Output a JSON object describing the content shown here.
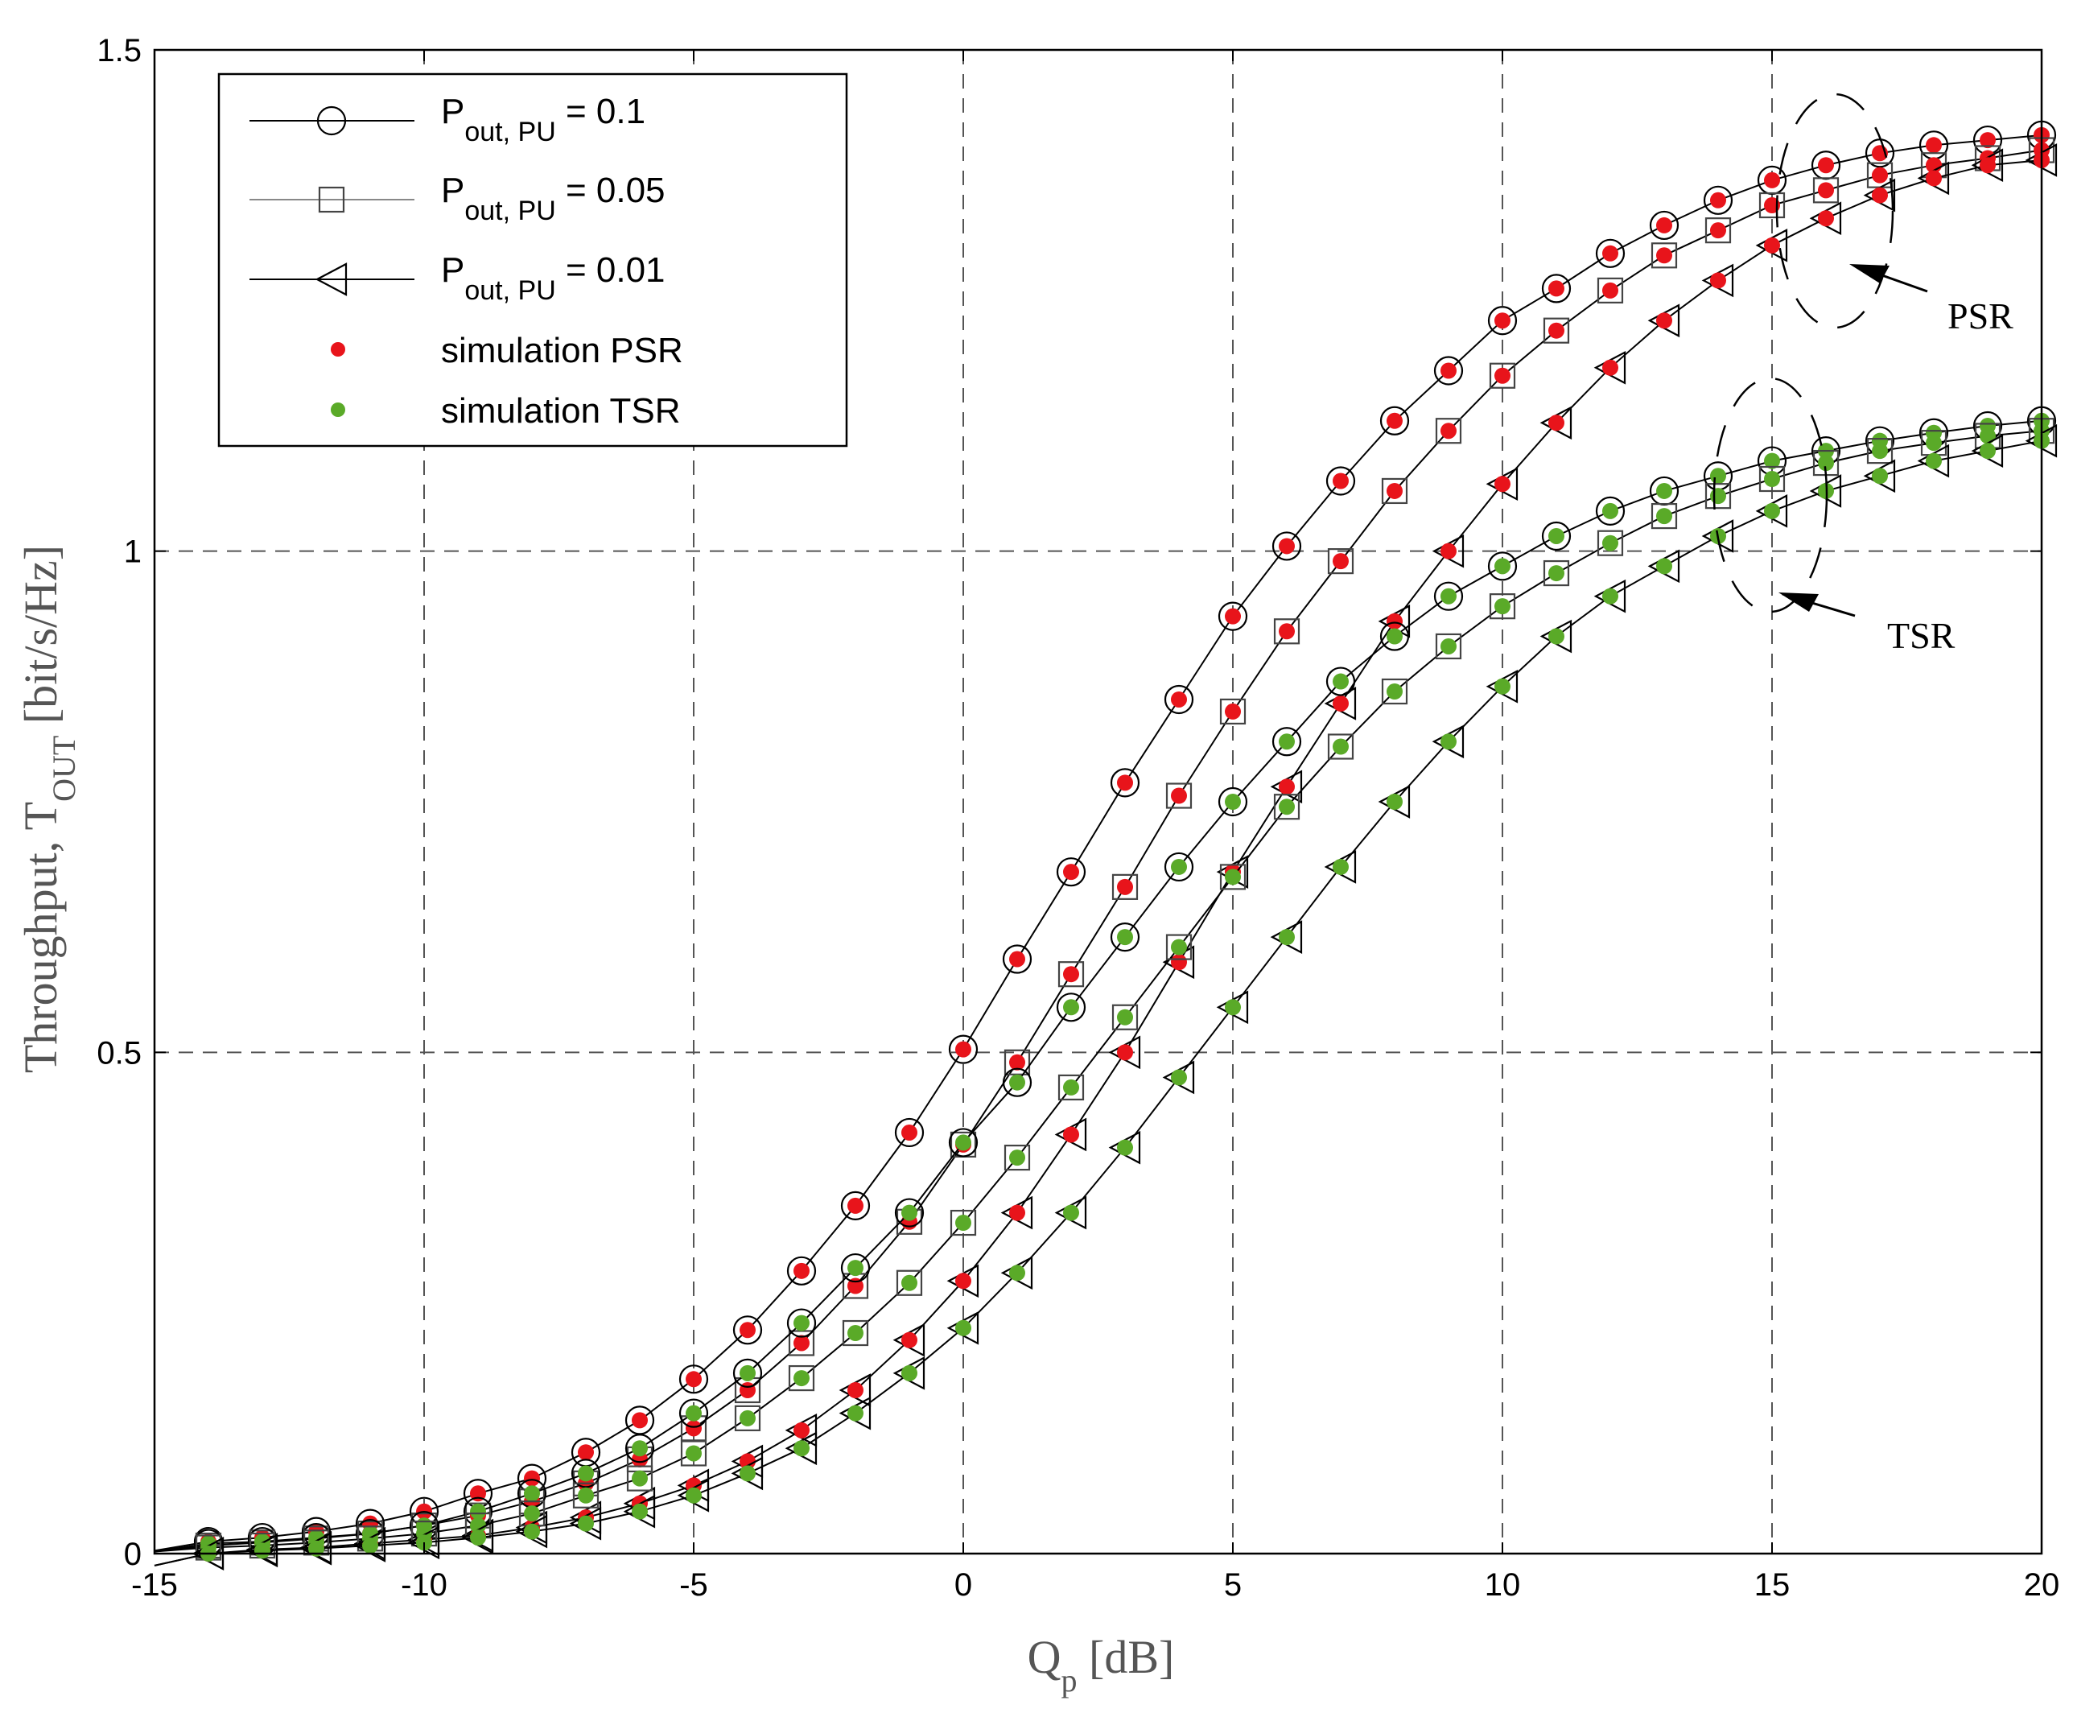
{
  "chart_data": {
    "type": "line",
    "xlabel": {
      "main": "Q",
      "sub": "p",
      "unit": " [dB]"
    },
    "ylabel": {
      "main": "Throughput, T",
      "sub": "OUT",
      "unit": " [bit/s/Hz]"
    },
    "xlim": [
      -15,
      20
    ],
    "ylim": [
      0,
      1.5
    ],
    "x_ticks": [
      -15,
      -10,
      -5,
      0,
      5,
      10,
      15,
      20
    ],
    "x_tick_labels": [
      "-15",
      "-10",
      "-5",
      "0",
      "5",
      "10",
      "15",
      "20"
    ],
    "y_ticks": [
      0,
      0.5,
      1,
      1.5
    ],
    "y_tick_labels": [
      "0",
      "0.5",
      "1",
      "1.5"
    ],
    "grid": true,
    "legend_position": "top-left",
    "legend": [
      {
        "label_main": "P",
        "label_sub": "out, PU",
        "label_rest": " = 0.1",
        "marker": "circle"
      },
      {
        "label_main": "P",
        "label_sub": "out, PU",
        "label_rest": " = 0.05",
        "marker": "square"
      },
      {
        "label_main": "P",
        "label_sub": "out, PU",
        "label_rest": " = 0.01",
        "marker": "triangle-left"
      },
      {
        "label_main": "simulation PSR",
        "marker": "dot",
        "color": "#e8141b"
      },
      {
        "label_main": "simulation TSR",
        "marker": "dot",
        "color": "#5aaa28"
      }
    ],
    "annotations": [
      {
        "text": "PSR",
        "points_to": "PSR curve group at Qp = 15 dB"
      },
      {
        "text": "TSR",
        "points_to": "TSR curve group at Qp = 15 dB"
      }
    ],
    "x": [
      -15,
      -14,
      -13,
      -12,
      -11,
      -10,
      -9,
      -8,
      -7,
      -6,
      -5,
      -4,
      -3,
      -2,
      -1,
      0,
      1,
      2,
      3,
      4,
      5,
      6,
      7,
      8,
      9,
      10,
      11,
      12,
      13,
      14,
      15,
      16,
      17,
      18,
      19,
      20
    ],
    "series": [
      {
        "name": "PSR, Pout,PU = 0.1",
        "scheme": "PSR",
        "marker": "circle",
        "sim_color": "#e8141b",
        "values": [
          0.003,
          0.012,
          0.016,
          0.022,
          0.03,
          0.042,
          0.06,
          0.075,
          0.101,
          0.133,
          0.174,
          0.223,
          0.282,
          0.347,
          0.42,
          0.503,
          0.593,
          0.68,
          0.769,
          0.852,
          0.935,
          1.005,
          1.07,
          1.13,
          1.18,
          1.23,
          1.262,
          1.297,
          1.325,
          1.35,
          1.37,
          1.385,
          1.397,
          1.405,
          1.41,
          1.415
        ]
      },
      {
        "name": "PSR, Pout,PU = 0.05",
        "scheme": "PSR",
        "marker": "square",
        "sim_color": "#e8141b",
        "values": [
          0.002,
          0.008,
          0.011,
          0.015,
          0.02,
          0.028,
          0.038,
          0.052,
          0.07,
          0.094,
          0.125,
          0.163,
          0.21,
          0.267,
          0.331,
          0.408,
          0.49,
          0.578,
          0.665,
          0.756,
          0.84,
          0.92,
          0.99,
          1.06,
          1.12,
          1.175,
          1.22,
          1.26,
          1.295,
          1.32,
          1.345,
          1.36,
          1.375,
          1.385,
          1.392,
          1.4
        ]
      },
      {
        "name": "PSR, Pout,PU = 0.01",
        "scheme": "PSR",
        "marker": "triangle-left",
        "sim_color": "#e8141b",
        "values": [
          -0.012,
          0.0,
          0.004,
          0.006,
          0.01,
          0.014,
          0.018,
          0.026,
          0.036,
          0.05,
          0.068,
          0.092,
          0.123,
          0.163,
          0.213,
          0.272,
          0.34,
          0.418,
          0.5,
          0.59,
          0.68,
          0.765,
          0.848,
          0.93,
          1.0,
          1.067,
          1.128,
          1.183,
          1.23,
          1.27,
          1.305,
          1.332,
          1.355,
          1.372,
          1.385,
          1.39
        ]
      },
      {
        "name": "TSR, Pout,PU = 0.1",
        "scheme": "TSR",
        "marker": "circle",
        "sim_color": "#5aaa28",
        "values": [
          0.002,
          0.01,
          0.012,
          0.016,
          0.02,
          0.028,
          0.042,
          0.06,
          0.08,
          0.105,
          0.14,
          0.18,
          0.23,
          0.285,
          0.34,
          0.41,
          0.47,
          0.545,
          0.615,
          0.685,
          0.75,
          0.81,
          0.87,
          0.915,
          0.955,
          0.985,
          1.015,
          1.04,
          1.06,
          1.075,
          1.09,
          1.1,
          1.11,
          1.118,
          1.125,
          1.13
        ]
      },
      {
        "name": "TSR, Pout,PU = 0.05",
        "scheme": "TSR",
        "marker": "square",
        "sim_color": "#5aaa28",
        "values": [
          0.002,
          0.006,
          0.008,
          0.011,
          0.015,
          0.02,
          0.028,
          0.04,
          0.058,
          0.075,
          0.1,
          0.135,
          0.175,
          0.22,
          0.27,
          0.33,
          0.395,
          0.465,
          0.535,
          0.605,
          0.675,
          0.745,
          0.805,
          0.86,
          0.905,
          0.945,
          0.978,
          1.008,
          1.035,
          1.055,
          1.072,
          1.088,
          1.1,
          1.108,
          1.115,
          1.12
        ]
      },
      {
        "name": "TSR, Pout,PU = 0.01",
        "scheme": "TSR",
        "marker": "triangle-left",
        "sim_color": "#5aaa28",
        "values": [
          -0.012,
          0.0,
          0.003,
          0.005,
          0.008,
          0.011,
          0.016,
          0.022,
          0.03,
          0.042,
          0.058,
          0.08,
          0.105,
          0.14,
          0.18,
          0.225,
          0.28,
          0.34,
          0.405,
          0.475,
          0.545,
          0.615,
          0.685,
          0.75,
          0.81,
          0.865,
          0.915,
          0.955,
          0.985,
          1.015,
          1.04,
          1.06,
          1.075,
          1.09,
          1.1,
          1.11
        ]
      }
    ]
  }
}
